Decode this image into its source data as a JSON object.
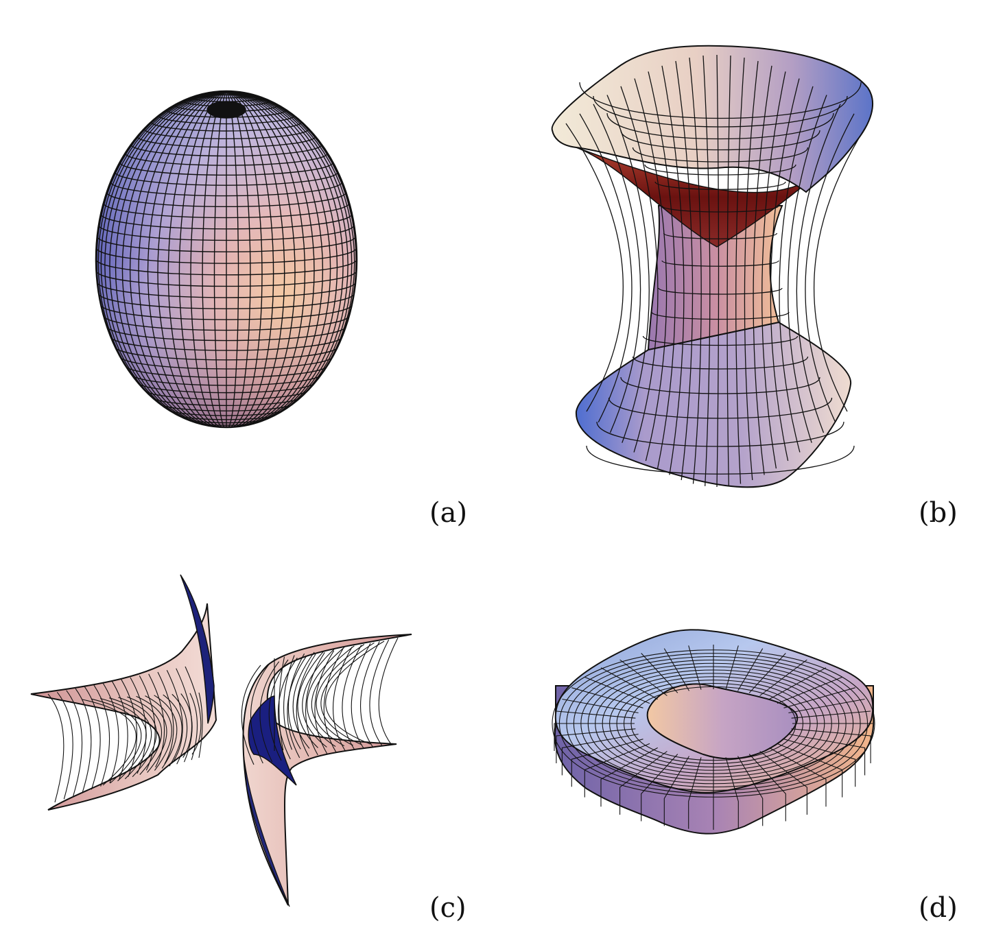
{
  "figure": {
    "panels": [
      {
        "id": "a",
        "caption": "(a)",
        "surface": "ellipsoid"
      },
      {
        "id": "b",
        "caption": "(b)",
        "surface": "hyperboloid-of-one-sheet"
      },
      {
        "id": "c",
        "caption": "(c)",
        "surface": "two-sheet-saddle"
      },
      {
        "id": "d",
        "caption": "(d)",
        "surface": "rounded-square-torus"
      }
    ]
  },
  "colors": {
    "mesh": "#111111",
    "blue": "#6b74c8",
    "lavender": "#b7a6d1",
    "pink": "#e3b2a6",
    "peach": "#f3c59a",
    "dark_red": "#7a1510",
    "navy": "#1b1f7a",
    "rose": "#d7a2a3"
  }
}
